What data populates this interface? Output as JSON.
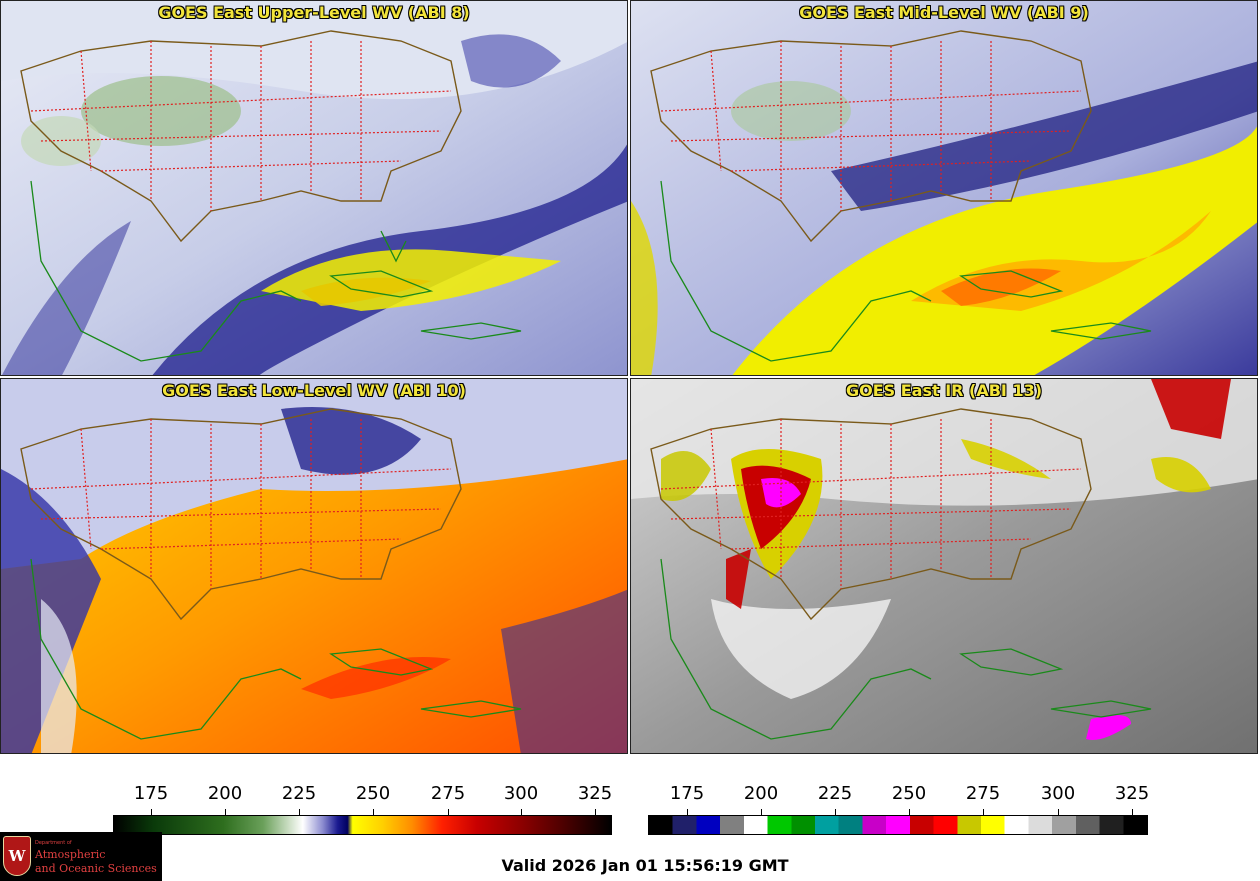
{
  "panels": [
    {
      "title": "GOES East Upper-Level WV (ABI 8)",
      "theme": "wv_upper"
    },
    {
      "title": "GOES East Mid-Level WV (ABI 9)",
      "theme": "wv_mid"
    },
    {
      "title": "GOES East Low-Level WV (ABI 10)",
      "theme": "wv_low"
    },
    {
      "title": "GOES East IR (ABI 13)",
      "theme": "ir"
    }
  ],
  "colorbar_wv": {
    "ticks": [
      "175",
      "200",
      "225",
      "250",
      "275",
      "300",
      "325"
    ]
  },
  "colorbar_ir": {
    "ticks": [
      "175",
      "200",
      "225",
      "250",
      "275",
      "300",
      "325"
    ],
    "segments": [
      "#000000",
      "#20206a",
      "#0000c0",
      "#808080",
      "#ffffff",
      "#00c800",
      "#009000",
      "#00a0a0",
      "#008080",
      "#c800c8",
      "#ff00ff",
      "#c80000",
      "#ff0000",
      "#c8c800",
      "#ffff00",
      "#ffffff",
      "#dcdcdc",
      "#a0a0a0",
      "#606060",
      "#202020",
      "#000000"
    ]
  },
  "footer": {
    "valid_text": "Valid 2026 Jan 01 15:56:19 GMT"
  },
  "logo": {
    "crest_letter": "W",
    "department": "Department of",
    "line1": "Atmospheric",
    "line2": "and Oceanic Sciences"
  },
  "colors": {
    "title_text": "#f2e43a",
    "state_borders": "#e02020",
    "coastlines": "#1a8a1a",
    "us_border": "#7a5a1a"
  }
}
